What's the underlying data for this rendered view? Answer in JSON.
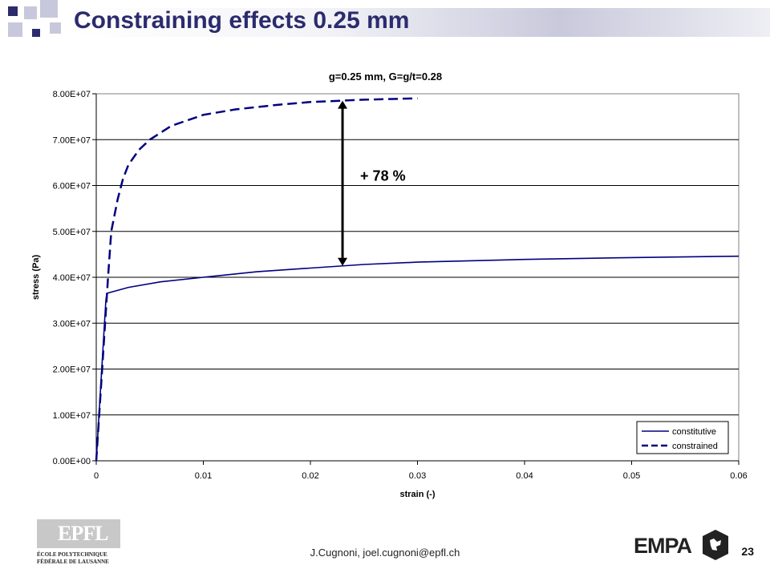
{
  "slide": {
    "title": "Constraining effects 0.25 mm",
    "footer": "J.Cugnoni, joel.cugnoni@epfl.ch",
    "page_number": "23",
    "colors": {
      "title": "#2b2b6e",
      "series": "#000080",
      "accent_squares": "#2b2b6e"
    }
  },
  "logos": {
    "epfl": {
      "mark": "EPFL",
      "line1": "ÉCOLE POLYTECHNIQUE",
      "line2": "FÉDÉRALE DE LAUSANNE"
    },
    "empa": {
      "text": "EMPA"
    }
  },
  "chart_data": {
    "type": "line",
    "title": "g=0.25 mm, G=g/t=0.28",
    "xlabel": "strain (-)",
    "ylabel": "stress (Pa)",
    "xlim": [
      0,
      0.06
    ],
    "ylim": [
      0,
      80000000
    ],
    "x_ticks": [
      "0",
      "0.01",
      "0.02",
      "0.03",
      "0.04",
      "0.05",
      "0.06"
    ],
    "y_ticks": [
      "0.00E+00",
      "1.00E+07",
      "2.00E+07",
      "3.00E+07",
      "4.00E+07",
      "5.00E+07",
      "6.00E+07",
      "7.00E+07",
      "8.00E+07"
    ],
    "grid": "horizontal",
    "legend_position": "bottom-right",
    "series": [
      {
        "name": "constitutive",
        "style": "solid",
        "x": [
          0,
          0.0009,
          0.001,
          0.003,
          0.006,
          0.01,
          0.015,
          0.02,
          0.025,
          0.03,
          0.04,
          0.05,
          0.06
        ],
        "y": [
          0,
          35000000,
          36500000,
          37800000,
          39000000,
          40000000,
          41200000,
          42000000,
          42800000,
          43300000,
          43900000,
          44300000,
          44600000
        ]
      },
      {
        "name": "constrained",
        "style": "dashed",
        "x": [
          0,
          0.0011,
          0.0014,
          0.002,
          0.0025,
          0.003,
          0.004,
          0.005,
          0.007,
          0.01,
          0.013,
          0.017,
          0.02,
          0.025,
          0.03
        ],
        "y": [
          0,
          40000000,
          50000000,
          57000000,
          61500000,
          64500000,
          67800000,
          70000000,
          73000000,
          75400000,
          76600000,
          77600000,
          78200000,
          78700000,
          79000000
        ]
      }
    ],
    "annotation": {
      "text": "+ 78 %",
      "arrow_x": 0.023,
      "arrow_y_from": 42500000,
      "arrow_y_to": 78500000
    }
  }
}
